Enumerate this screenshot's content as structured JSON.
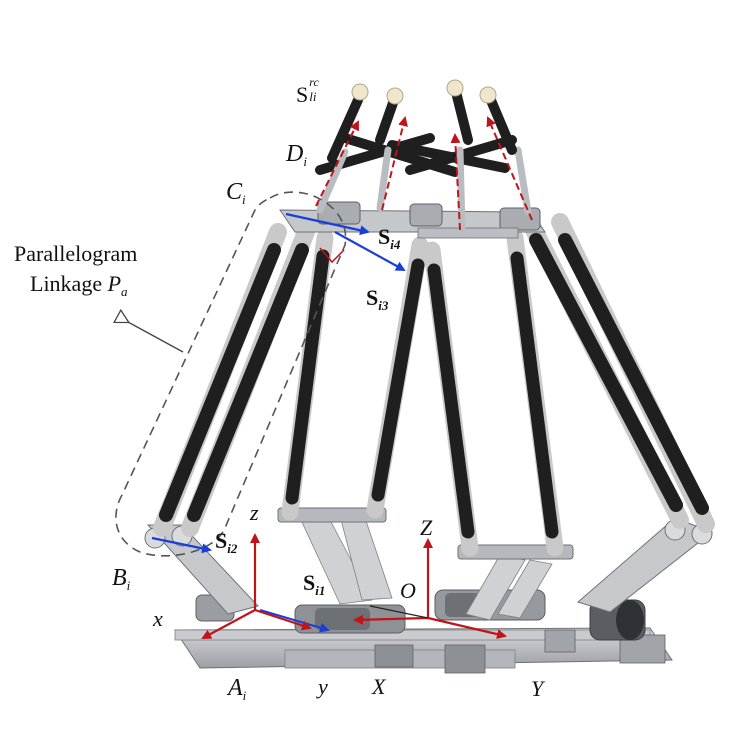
{
  "labels": {
    "parallelogram_title": "Parallelogram",
    "linkage_text": "Linkage ",
    "linkage_sym": "P",
    "linkage_sub": "a",
    "S_main": "S",
    "S_sup": "rc",
    "S_sub": "li",
    "D": "D",
    "D_sub": "i",
    "C": "C",
    "C_sub": "i",
    "B": "B",
    "B_sub": "i",
    "A": "A",
    "A_sub": "i",
    "Si4": "S",
    "Si4_sub": "i4",
    "Si3": "S",
    "Si3_sub": "i3",
    "Si2": "S",
    "Si2_sub": "i2",
    "Si1": "S",
    "Si1_sub": "i1",
    "z": "z",
    "x": "x",
    "y": "y",
    "Z": "Z",
    "O": "O",
    "X": "X",
    "Y": "Y"
  },
  "colors": {
    "rod": "#1f1f1f",
    "metal": "#b9bcc0",
    "metal_dark": "#8a8d92",
    "frame_red": "#c0141a",
    "screw_blue": "#1a3fd6",
    "dash": "#555555",
    "tip": "#efe6cc"
  }
}
